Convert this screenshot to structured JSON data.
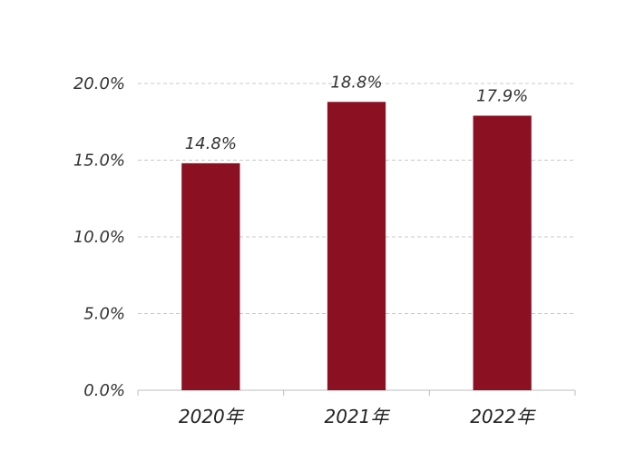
{
  "chart_data": {
    "type": "bar",
    "title": "",
    "xlabel": "",
    "ylabel": "",
    "categories": [
      "2020年",
      "2021年",
      "2022年"
    ],
    "values": [
      14.8,
      18.8,
      17.9
    ],
    "data_labels": [
      "14.8%",
      "18.8%",
      "17.9%"
    ],
    "ylim": [
      0,
      20
    ],
    "yticks": [
      0,
      5,
      10,
      15,
      20
    ],
    "ytick_labels": [
      "0.0%",
      "5.0%",
      "10.0%",
      "15.0%",
      "20.0%"
    ],
    "grid": true,
    "legend": "none",
    "bar_color": "#8b1022"
  }
}
